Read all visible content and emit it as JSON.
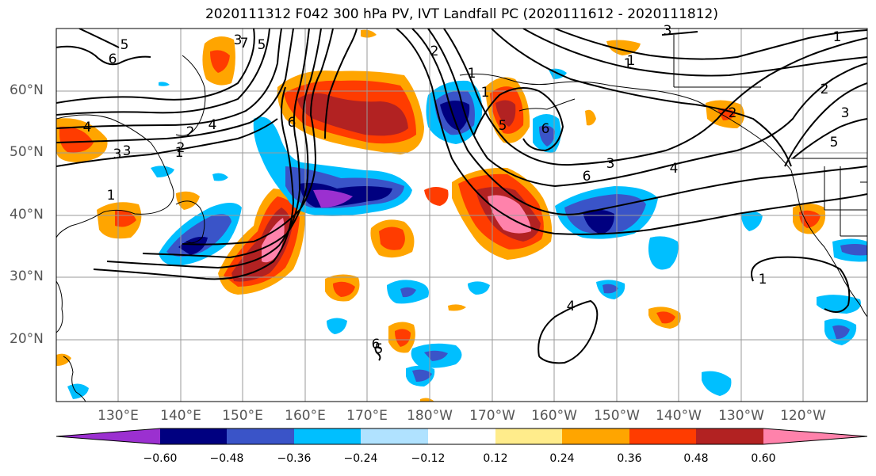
{
  "title": "2020111312 F042 300 hPa PV, IVT Landfall PC (2020111612 - 2020111812)",
  "lat_labels": [
    "60°N",
    "50°N",
    "40°N",
    "30°N",
    "20°N"
  ],
  "lon_labels": [
    "130°E",
    "140°E",
    "150°E",
    "160°E",
    "170°E",
    "180°W",
    "170°W",
    "160°W",
    "150°W",
    "140°W",
    "130°W",
    "120°W"
  ],
  "colorbar": {
    "colors": [
      "#9b30d0",
      "#000080",
      "#3a54c8",
      "#00bfff",
      "#b0e2ff",
      "#ffffff",
      "#ffec8b",
      "#ffa500",
      "#ff3c00",
      "#b22222",
      "#ff82ab"
    ],
    "tick_labels": [
      "−0.60",
      "−0.48",
      "−0.36",
      "−0.24",
      "−0.12",
      "0.12",
      "0.24",
      "0.36",
      "0.48",
      "0.60"
    ]
  },
  "contour_labels": [
    "5",
    "6",
    "7",
    "1",
    "2",
    "3",
    "4",
    "6",
    "5",
    "3",
    "2",
    "1",
    "4",
    "3",
    "2",
    "1",
    "5",
    "6",
    "6",
    "3",
    "4",
    "5",
    "3",
    "1",
    "1",
    "2",
    "3",
    "2",
    "1",
    "4",
    "5",
    "6",
    "1",
    "1"
  ]
}
